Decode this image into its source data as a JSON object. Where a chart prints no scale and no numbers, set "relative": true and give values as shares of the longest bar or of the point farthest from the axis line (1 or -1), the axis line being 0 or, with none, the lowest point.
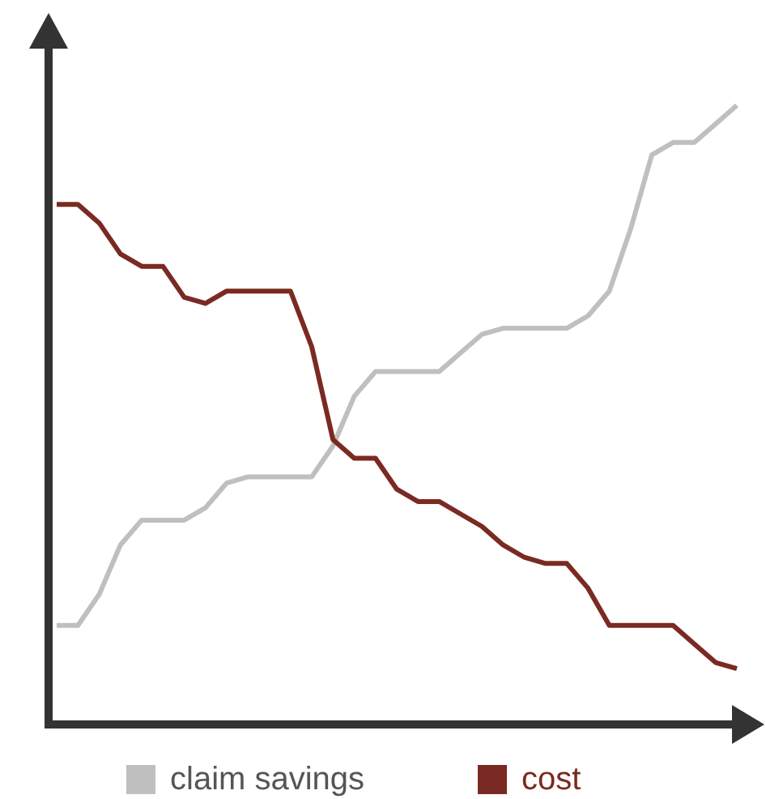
{
  "chart_data": {
    "type": "line",
    "relative": true,
    "legend": "bottom",
    "marker": "none",
    "line_style": "solid",
    "categories": [
      null,
      null,
      null,
      null,
      null,
      null,
      null,
      null,
      null,
      null,
      null,
      null,
      null,
      null,
      null,
      null,
      null,
      null,
      null,
      null,
      null,
      null,
      null,
      null,
      null,
      null,
      null,
      null,
      null,
      null,
      null,
      null,
      null
    ],
    "series": [
      {
        "name": "claim savings",
        "color": "#bfbfbf",
        "values": [
          0.16,
          0.16,
          0.21,
          0.29,
          0.33,
          0.33,
          0.33,
          0.35,
          0.39,
          0.4,
          0.4,
          0.4,
          0.4,
          0.45,
          0.53,
          0.57,
          0.57,
          0.57,
          0.57,
          0.6,
          0.63,
          0.64,
          0.64,
          0.64,
          0.64,
          0.66,
          0.7,
          0.8,
          0.92,
          0.94,
          0.94,
          0.97,
          1
        ]
      },
      {
        "name": "cost",
        "color": "#7a2a22",
        "values": [
          0.84,
          0.84,
          0.81,
          0.76,
          0.74,
          0.74,
          0.69,
          0.68,
          0.7,
          0.7,
          0.7,
          0.7,
          0.61,
          0.46,
          0.43,
          0.43,
          0.38,
          0.36,
          0.36,
          0.34,
          0.32,
          0.29,
          0.27,
          0.26,
          0.26,
          0.22,
          0.16,
          0.16,
          0.16,
          0.16,
          0.13,
          0.1,
          0.09
        ]
      }
    ]
  }
}
